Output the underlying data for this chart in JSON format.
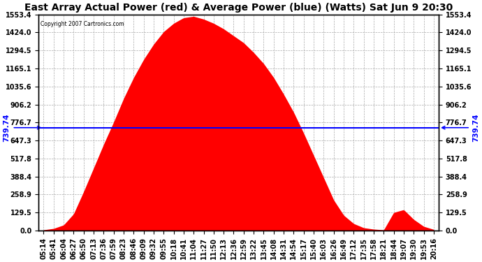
{
  "title": "East Array Actual Power (red) & Average Power (blue) (Watts) Sat Jun 9 20:30",
  "copyright": "Copyright 2007 Cartronics.com",
  "avg_power": 739.74,
  "y_max": 1553.4,
  "y_min": 0.0,
  "y_ticks": [
    0.0,
    129.5,
    258.9,
    388.4,
    517.8,
    647.3,
    776.7,
    906.2,
    1035.6,
    1165.1,
    1294.5,
    1424.0,
    1553.4
  ],
  "x_labels": [
    "05:14",
    "05:41",
    "06:04",
    "06:27",
    "06:50",
    "07:13",
    "07:36",
    "07:59",
    "08:23",
    "08:46",
    "09:09",
    "09:32",
    "09:55",
    "10:18",
    "10:41",
    "11:04",
    "11:27",
    "11:50",
    "12:13",
    "12:36",
    "12:59",
    "13:22",
    "13:45",
    "14:08",
    "14:31",
    "14:54",
    "15:17",
    "15:40",
    "16:03",
    "16:26",
    "16:49",
    "17:12",
    "17:35",
    "17:58",
    "18:21",
    "18:44",
    "19:07",
    "19:30",
    "19:53",
    "20:16"
  ],
  "power_values": [
    5,
    15,
    40,
    120,
    280,
    450,
    620,
    780,
    950,
    1100,
    1230,
    1340,
    1430,
    1490,
    1530,
    1540,
    1520,
    1490,
    1450,
    1400,
    1350,
    1280,
    1200,
    1100,
    980,
    850,
    700,
    540,
    380,
    220,
    110,
    50,
    20,
    10,
    5,
    130,
    150,
    80,
    30,
    8
  ],
  "area_color": "#FF0000",
  "line_color": "#0000FF",
  "bg_color": "#FFFFFF",
  "grid_color": "#AAAAAA",
  "title_fontsize": 10,
  "label_fontsize": 7,
  "annotation_fontsize": 7.5
}
